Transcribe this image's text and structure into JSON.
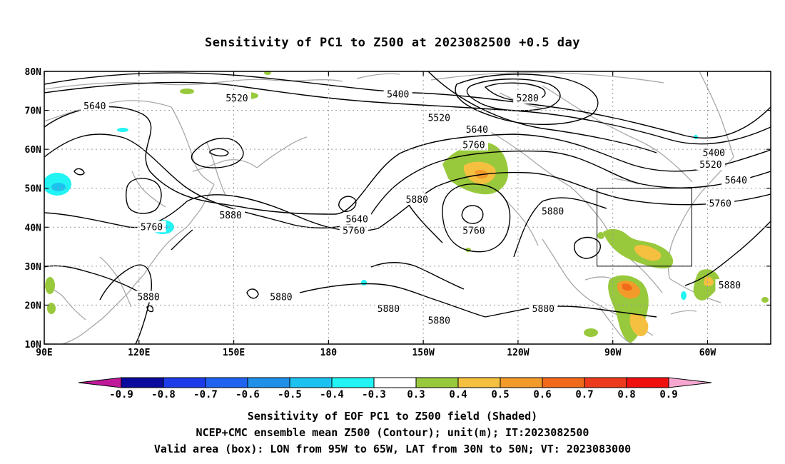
{
  "title": "Sensitivity of PC1 to Z500 at 2023082500 +0.5 day",
  "footer": [
    "Sensitivity of EOF PC1 to Z500 field (Shaded)",
    "NCEP+CMC ensemble mean Z500 (Contour); unit(m); IT:2023082500",
    "Valid area (box): LON from 95W to 65W, LAT from 30N to 50N; VT: 2023083000"
  ],
  "map": {
    "lon_range": [
      90,
      320
    ],
    "lat_range": [
      10,
      80
    ],
    "x_ticks": [
      {
        "lon": 90,
        "label": "90E"
      },
      {
        "lon": 120,
        "label": "120E"
      },
      {
        "lon": 150,
        "label": "150E"
      },
      {
        "lon": 180,
        "label": "180"
      },
      {
        "lon": 210,
        "label": "150W"
      },
      {
        "lon": 240,
        "label": "120W"
      },
      {
        "lon": 270,
        "label": "90W"
      },
      {
        "lon": 300,
        "label": "60W"
      }
    ],
    "y_ticks": [
      {
        "lat": 80,
        "label": "80N"
      },
      {
        "lat": 70,
        "label": "70N"
      },
      {
        "lat": 60,
        "label": "60N"
      },
      {
        "lat": 50,
        "label": "50N"
      },
      {
        "lat": 40,
        "label": "40N"
      },
      {
        "lat": 30,
        "label": "30N"
      },
      {
        "lat": 20,
        "label": "20N"
      },
      {
        "lat": 10,
        "label": "10N"
      }
    ],
    "grid": "dotted",
    "box": {
      "lon_min": 265,
      "lon_max": 295,
      "lat_min": 30,
      "lat_max": 50
    },
    "contour_labels": [
      {
        "text": "5640",
        "lon": 106,
        "lat": 71
      },
      {
        "text": "5520",
        "lon": 151,
        "lat": 73
      },
      {
        "text": "5400",
        "lon": 202,
        "lat": 74
      },
      {
        "text": "5280",
        "lon": 243,
        "lat": 73
      },
      {
        "text": "5520",
        "lon": 215,
        "lat": 68
      },
      {
        "text": "5640",
        "lon": 227,
        "lat": 65
      },
      {
        "text": "5760",
        "lon": 226,
        "lat": 61
      },
      {
        "text": "5400",
        "lon": 302,
        "lat": 59
      },
      {
        "text": "5520",
        "lon": 301,
        "lat": 56
      },
      {
        "text": "5640",
        "lon": 309,
        "lat": 52
      },
      {
        "text": "5760",
        "lon": 304,
        "lat": 46
      },
      {
        "text": "5880",
        "lon": 149,
        "lat": 43
      },
      {
        "text": "5760",
        "lon": 124,
        "lat": 40
      },
      {
        "text": "5640",
        "lon": 189,
        "lat": 42
      },
      {
        "text": "5760",
        "lon": 188,
        "lat": 39
      },
      {
        "text": "5880",
        "lon": 208,
        "lat": 47
      },
      {
        "text": "5760",
        "lon": 226,
        "lat": 39
      },
      {
        "text": "5880",
        "lon": 251,
        "lat": 44
      },
      {
        "text": "5880",
        "lon": 123,
        "lat": 22
      },
      {
        "text": "5880",
        "lon": 165,
        "lat": 22
      },
      {
        "text": "5880",
        "lon": 199,
        "lat": 19
      },
      {
        "text": "5880",
        "lon": 215,
        "lat": 16
      },
      {
        "text": "5880",
        "lon": 248,
        "lat": 19
      },
      {
        "text": "5880",
        "lon": 307,
        "lat": 25
      }
    ]
  },
  "colorbar": {
    "labels": [
      "-0.9",
      "-0.8",
      "-0.7",
      "-0.6",
      "-0.5",
      "-0.4",
      "-0.3",
      "0.3",
      "0.4",
      "0.5",
      "0.6",
      "0.7",
      "0.8",
      "0.9"
    ],
    "colors": [
      "#0a0a9c",
      "#1d3be8",
      "#1f63f0",
      "#1f8fe8",
      "#1cc2ef",
      "#22f4f4",
      "#ffffff",
      "#98c93c",
      "#f5c040",
      "#f39b2a",
      "#f06a1a",
      "#ee3a1c",
      "#f01010"
    ],
    "low_end_color": "#c0199a",
    "high_end_color": "#f7a6cf"
  }
}
